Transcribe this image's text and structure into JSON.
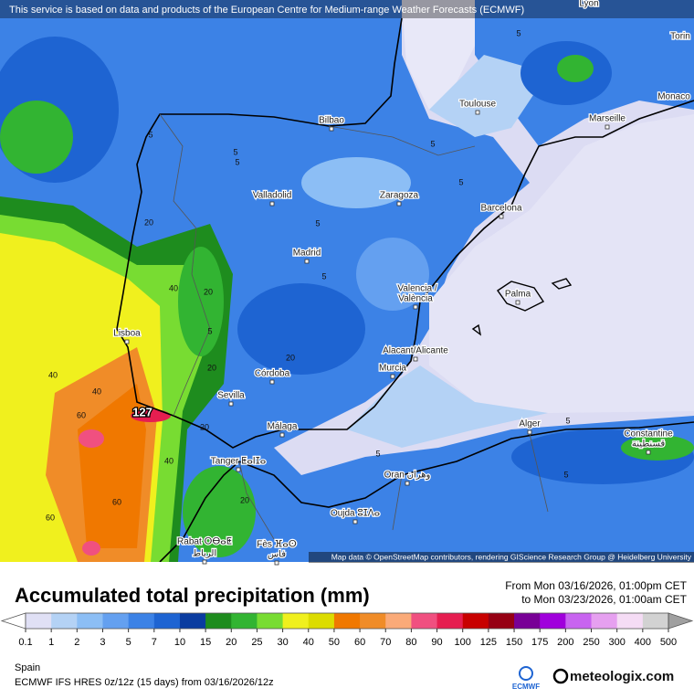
{
  "header": {
    "notice": "This service is based on data and products of the European Centre for Medium-range Weather Forecasts (ECMWF)"
  },
  "map": {
    "cities": [
      "Lyon",
      "Torin",
      "Monaco",
      "Toulouse",
      "Marseille",
      "Bilbao",
      "Valladolid",
      "Zaragoza",
      "Barcelona",
      "Madrid",
      "Valencia /",
      "València",
      "Palma",
      "Lisboa",
      "Alacant/Alicante",
      "Murcia",
      "Córdoba",
      "Sevilla",
      "Alger",
      "Constantine",
      "قسنطينة",
      "Málaga",
      "Tanger ⵟⴰⵏⵊⴰ",
      "Oran وهران",
      "Oujda ⵓⵊⴷⴰ",
      "Rabat ⵔⴱⴰⵟ",
      "الرباط",
      "Fès ⴼⴰⵙ",
      "فاس"
    ],
    "contour_labels": [
      5,
      5,
      5,
      20,
      40,
      20,
      5,
      5,
      20,
      20,
      40,
      40,
      60,
      20,
      40,
      60,
      60,
      5,
      5,
      5,
      5,
      5,
      20,
      5,
      5
    ],
    "max_label": 127,
    "attribution": "Map data © OpenStreetMap contributors, rendering GIScience Research Group @ Heidelberg University"
  },
  "title": "Accumulated total precipitation (mm)",
  "period": {
    "from": "From Mon 03/16/2026, 01:00pm CET",
    "to": "to Mon 03/23/2026, 01:00am CET"
  },
  "legend": {
    "ticks": [
      0.1,
      1,
      2,
      3,
      5,
      7,
      10,
      15,
      20,
      25,
      30,
      40,
      50,
      60,
      70,
      80,
      90,
      100,
      125,
      150,
      175,
      200,
      250,
      300,
      400,
      500
    ],
    "colors": [
      "#e0e0f5",
      "#b4d2f5",
      "#8cbef5",
      "#64a0f0",
      "#3c82e6",
      "#1e64d2",
      "#0a3ca0",
      "#1e8c1e",
      "#32b432",
      "#78dc32",
      "#f0f01e",
      "#dcdc00",
      "#f07800",
      "#f08c28",
      "#faaa78",
      "#f05080",
      "#e61e50",
      "#c80000",
      "#960014",
      "#780096",
      "#a000dc",
      "#c864f0",
      "#e6a0f0",
      "#f5dcf5",
      "#d2d2d2"
    ],
    "over_color": "#a0a0a0"
  },
  "region": "Spain",
  "model": "ECMWF IFS HRES 0z/12z (15 days) from  03/16/2026/12z",
  "logos": {
    "ecmwf": "ECMWF",
    "meteologix": "meteologix.com"
  }
}
